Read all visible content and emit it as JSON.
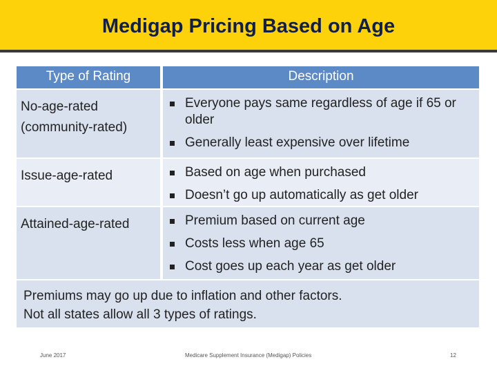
{
  "header": {
    "title": "Medigap Pricing Based on Age"
  },
  "table": {
    "columns": [
      "Type of Rating",
      "Description"
    ],
    "rows": [
      {
        "label": "No-age-rated (community-rated)",
        "bullets": [
          "Everyone pays same regardless of age if 65 or older",
          "Generally least expensive over lifetime"
        ]
      },
      {
        "label": "Issue-age-rated",
        "bullets": [
          "Based on age when purchased",
          "Doesn’t go up automatically as get older"
        ]
      },
      {
        "label": "Attained-age-rated",
        "bullets": [
          "Premium based on current age",
          "Costs less when age 65",
          "Cost goes up each year as get older"
        ]
      }
    ]
  },
  "note": [
    "Premiums may go up due to inflation and other factors.",
    "Not all states allow all 3 types of ratings."
  ],
  "footer": {
    "date": "June 2017",
    "center": "Medicare Supplement Insurance (Medigap) Policies",
    "page": "12"
  }
}
